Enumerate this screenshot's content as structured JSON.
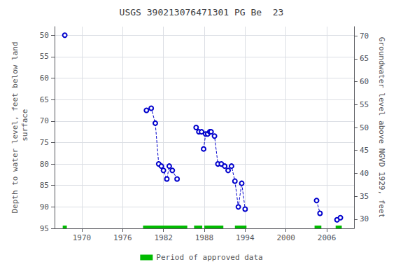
{
  "chart_data": {
    "type": "line",
    "title": "USGS 390213076471301 PG Be  23",
    "ylabel": "Depth to water level, feet below land\n surface",
    "y2label": "Groundwater level above NGVD 1929, feet",
    "xlim": [
      1966,
      2010
    ],
    "xticks": [
      1970,
      1976,
      1982,
      1988,
      1994,
      2000,
      2006
    ],
    "ylim": [
      95,
      48
    ],
    "yticks": [
      50,
      55,
      60,
      65,
      70,
      75,
      80,
      85,
      90,
      95
    ],
    "y2lim": [
      28,
      72
    ],
    "y2ticks": [
      70,
      65,
      60,
      55,
      50,
      45,
      40,
      35,
      30
    ],
    "grid": true,
    "series": [
      {
        "color": "#0000CC",
        "line_style": "dashed",
        "marker": "open circle",
        "x": [
          1967.5
        ],
        "values": [
          50.0
        ]
      },
      {
        "color": "#0000CC",
        "line_style": "dashed",
        "marker": "open circle",
        "x": [
          1979.5,
          1980.2,
          1980.8,
          1981.3,
          1981.7,
          1982.0,
          1982.5,
          1982.85,
          1983.3,
          1984.0
        ],
        "values": [
          67.5,
          67.0,
          70.5,
          80.0,
          80.5,
          81.5,
          83.5,
          80.5,
          81.5,
          83.5
        ]
      },
      {
        "color": "#0000CC",
        "line_style": "dashed",
        "marker": "open circle",
        "x": [
          1986.8,
          1987.2,
          1987.6
        ],
        "values": [
          71.5,
          72.5,
          72.5
        ]
      },
      {
        "color": "#0000CC",
        "line_style": "dashed",
        "marker": "open circle",
        "x": [
          1987.9,
          1988.2,
          1988.5,
          1988.8,
          1989.0,
          1989.5,
          1990.0,
          1990.5,
          1991.0,
          1991.5,
          1992.0,
          1992.5,
          1993.0,
          1993.5,
          1994.0
        ],
        "values": [
          76.5,
          73.0,
          73.0,
          72.5,
          72.5,
          73.5,
          80.0,
          80.0,
          80.5,
          81.5,
          80.5,
          84.0,
          90.0,
          84.5,
          90.5
        ]
      },
      {
        "color": "#0000CC",
        "line_style": "dashed",
        "marker": "open circle",
        "x": [
          2004.5,
          2005.0
        ],
        "values": [
          88.5,
          91.5
        ]
      },
      {
        "color": "#0000CC",
        "line_style": "dashed",
        "marker": "open circle",
        "x": [
          2007.5,
          2008.0
        ],
        "values": [
          93.0,
          92.5
        ]
      },
      {
        "name": "Period of approved data",
        "type": "range_bar",
        "color": "#00bb00",
        "y": 95.0,
        "ranges": [
          [
            1967.2,
            1967.8
          ],
          [
            1979.0,
            1985.5
          ],
          [
            1986.5,
            1987.7
          ],
          [
            1988.0,
            1990.8
          ],
          [
            1992.5,
            1994.2
          ],
          [
            2004.2,
            2005.2
          ],
          [
            2007.3,
            2008.2
          ]
        ]
      }
    ]
  }
}
